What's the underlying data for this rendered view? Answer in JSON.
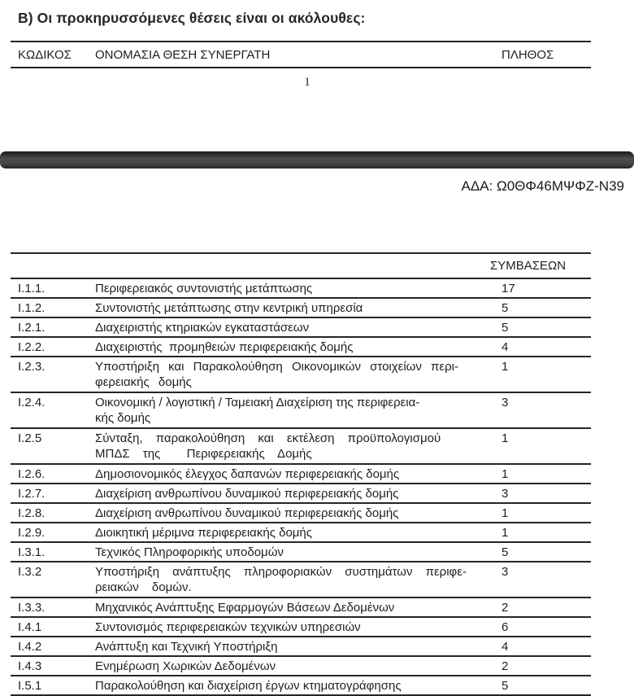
{
  "colors": {
    "band": "#434345",
    "table_border": "#262626",
    "text": "#1f1f1f"
  },
  "page1": {
    "heading": "Β) Οι προκηρυσσόμενες θέσεις είναι οι ακόλουθες:",
    "table_header": {
      "code": "ΚΩΔΙΚΟΣ",
      "name": "ΟΝΟΜΑΣΙΑ ΘΕΣΗ ΣΥΝΕΡΓΑΤΗ",
      "count": "ΠΛΗΘΟΣ"
    },
    "page_number": "1"
  },
  "page2": {
    "ada": "ΑΔΑ: Ω0ΘΦ46ΜΨΦΖ-Ν39",
    "table": {
      "header_count": "ΣΥΜΒΑΣΕΩΝ",
      "rows": [
        {
          "code": "Ι.1.1.",
          "name": "Περιφερειακός συντονιστής μετάπτωσης",
          "count": "17"
        },
        {
          "code": "Ι.1.2.",
          "name": "Συντονιστής μετάπτωσης στην κεντρική υπηρεσία",
          "count": "5"
        },
        {
          "code": "Ι.2.1.",
          "name": "Διαχειριστής κτηριακών εγκαταστάσεων",
          "count": "5"
        },
        {
          "code": "Ι.2.2.",
          "name": "Διαχειριστής  προμηθειών περιφερειακής δομής",
          "count": "4"
        },
        {
          "code": "Ι.2.3.",
          "name": "Υποστήριξη και Παρακολούθηση Οικονομικών στοιχείων περι-\nφερειακής δομής",
          "count": "1"
        },
        {
          "code": "Ι.2.4.",
          "name": "Οικονομική / λογιστική / Ταμειακή Διαχείριση της περιφερεια-\nκής δομής",
          "count": "3"
        },
        {
          "code": "Ι.2.5",
          "name": "Σύνταξη, παρακολούθηση και εκτέλεση προϋπολογισμού\nΜΠΔΣ της  Περιφερειακής Δομής",
          "count": "1"
        },
        {
          "code": "Ι.2.6.",
          "name": "Δημοσιονομικός έλεγχος δαπανών περιφερειακής δομής",
          "count": "1"
        },
        {
          "code": "Ι.2.7.",
          "name": "Διαχείριση ανθρωπίνου δυναμικού περιφερειακής δομής",
          "count": "3"
        },
        {
          "code": "Ι.2.8.",
          "name": "Διαχείριση ανθρωπίνου δυναμικού περιφερειακής δομής",
          "count": "1"
        },
        {
          "code": "Ι.2.9.",
          "name": "Διοικητική μέριμνα περιφερειακής δομής",
          "count": "1"
        },
        {
          "code": "Ι.3.1.",
          "name": "Τεχνικός Πληροφορικής υποδομών",
          "count": "5"
        },
        {
          "code": "Ι.3.2",
          "name": "Υποστήριξη ανάπτυξης πληροφοριακών συστημάτων περιφε-\nρειακών δομών.",
          "count": "3"
        },
        {
          "code": "Ι.3.3.",
          "name": "Μηχανικός Ανάπτυξης Εφαρμογών Βάσεων Δεδομένων",
          "count": "2"
        },
        {
          "code": "Ι.4.1",
          "name": "Συντονισμός περιφερειακών τεχνικών υπηρεσιών",
          "count": "6"
        },
        {
          "code": "Ι.4.2",
          "name": "Ανάπτυξη και Τεχνική Υποστήριξη",
          "count": "4"
        },
        {
          "code": "Ι.4.3",
          "name": "Ενημέρωση Χωρικών Δεδομένων",
          "count": "2"
        },
        {
          "code": "Ι.5.1",
          "name": "Παρακολούθηση και διαχείριση έργων κτηματογράφησης",
          "count": "5"
        }
      ]
    }
  }
}
